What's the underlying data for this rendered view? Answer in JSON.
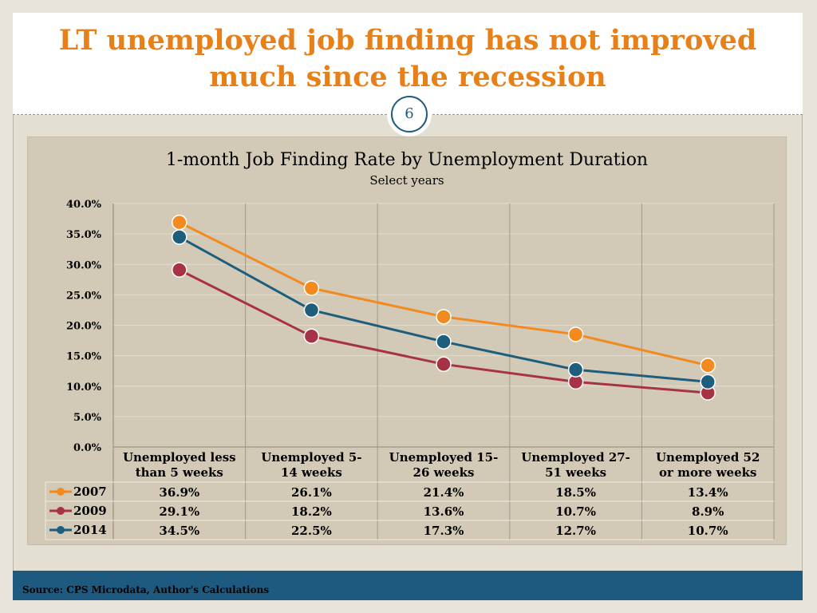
{
  "slide": {
    "title": "LT unemployed job finding has not improved much since the recession",
    "page_number": "6",
    "source": "Source: CPS Microdata, Author's Calculations"
  },
  "colors": {
    "title": "#e8801a",
    "accent": "#1e5a80",
    "panel": "#d2cab7"
  },
  "chart_data": {
    "type": "line",
    "title": "1-month Job Finding Rate by Unemployment Duration",
    "subtitle": "Select years",
    "categories": [
      [
        "Unemployed less",
        "than 5 weeks"
      ],
      [
        "Unemployed 5-",
        "14 weeks"
      ],
      [
        "Unemployed 15-",
        "26 weeks"
      ],
      [
        "Unemployed 27-",
        "51 weeks"
      ],
      [
        "Unemployed 52",
        "or more weeks"
      ]
    ],
    "y_ticks": [
      "40.0%",
      "35.0%",
      "30.0%",
      "25.0%",
      "20.0%",
      "15.0%",
      "10.0%",
      "5.0%",
      "0.0%"
    ],
    "ylim": [
      0,
      40
    ],
    "grid": true,
    "legend": "data-table",
    "series": [
      {
        "name": "2007",
        "color": "#f28a1d",
        "values": [
          36.9,
          26.1,
          21.4,
          18.5,
          13.4
        ],
        "labels": [
          "36.9%",
          "26.1%",
          "21.4%",
          "18.5%",
          "13.4%"
        ]
      },
      {
        "name": "2009",
        "color": "#a83245",
        "values": [
          29.1,
          18.2,
          13.6,
          10.7,
          8.9
        ],
        "labels": [
          "29.1%",
          "18.2%",
          "13.6%",
          "10.7%",
          "8.9%"
        ]
      },
      {
        "name": "2014",
        "color": "#1d5e7d",
        "values": [
          34.5,
          22.5,
          17.3,
          12.7,
          10.7
        ],
        "labels": [
          "34.5%",
          "22.5%",
          "17.3%",
          "12.7%",
          "10.7%"
        ]
      }
    ]
  }
}
